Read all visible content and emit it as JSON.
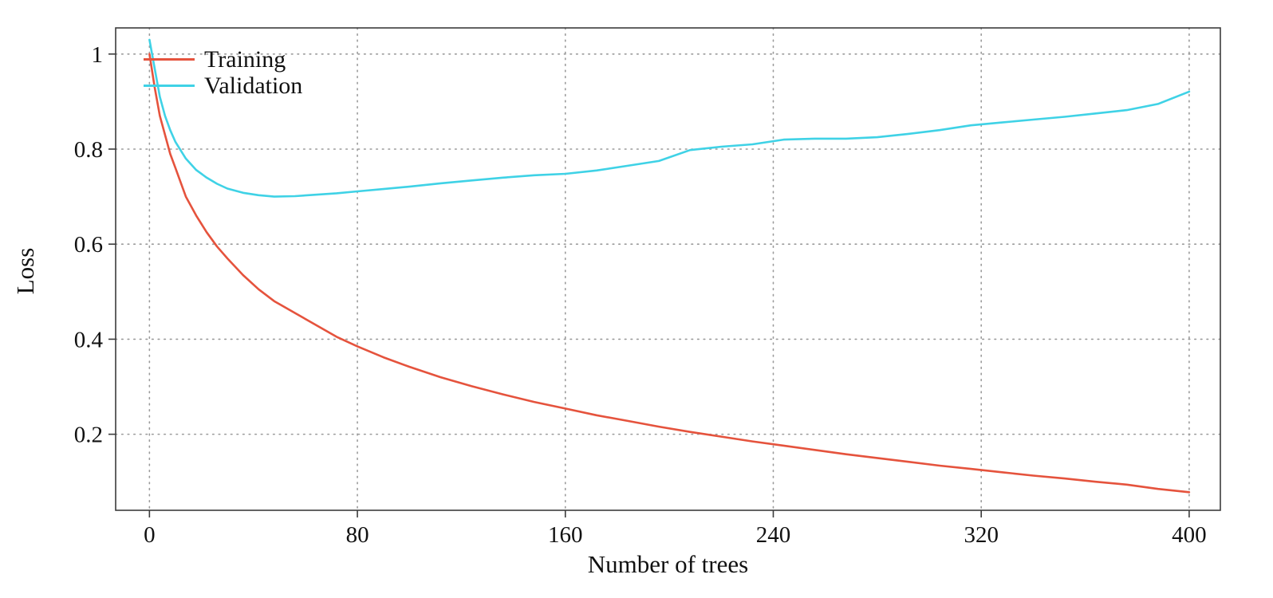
{
  "page": {
    "background": "#ffffff"
  },
  "chart_data": {
    "type": "line",
    "title": "",
    "xlabel": "Number of trees",
    "ylabel": "Loss",
    "xlim": [
      -13,
      412
    ],
    "ylim": [
      0.04,
      1.055
    ],
    "x_ticks": [
      0,
      80,
      160,
      240,
      320,
      400
    ],
    "x_tick_labels": [
      "0",
      "80",
      "160",
      "240",
      "320",
      "400"
    ],
    "y_ticks": [
      0.2,
      0.4,
      0.6,
      0.8,
      1.0
    ],
    "y_tick_labels": [
      "0.2",
      "0.4",
      "0.6",
      "0.8",
      "1"
    ],
    "grid": "dotted",
    "grid_color": "#9a9a9a",
    "frame_color": "#3c3c3c",
    "legend_position": "top-left-inside",
    "x": [
      0,
      2,
      4,
      6,
      8,
      10,
      14,
      18,
      22,
      26,
      30,
      36,
      42,
      48,
      56,
      64,
      72,
      80,
      90,
      100,
      112,
      124,
      136,
      148,
      160,
      172,
      184,
      196,
      208,
      220,
      232,
      244,
      256,
      268,
      280,
      292,
      304,
      316,
      328,
      340,
      352,
      364,
      376,
      388,
      400
    ],
    "series": [
      {
        "name": "Training",
        "color": "#e5533d",
        "values": [
          1.0,
          0.93,
          0.87,
          0.83,
          0.79,
          0.76,
          0.7,
          0.66,
          0.625,
          0.595,
          0.57,
          0.535,
          0.505,
          0.48,
          0.455,
          0.43,
          0.405,
          0.385,
          0.362,
          0.342,
          0.32,
          0.301,
          0.284,
          0.268,
          0.254,
          0.24,
          0.228,
          0.216,
          0.205,
          0.195,
          0.185,
          0.176,
          0.167,
          0.158,
          0.15,
          0.142,
          0.134,
          0.127,
          0.12,
          0.113,
          0.107,
          0.1,
          0.094,
          0.085,
          0.078
        ]
      },
      {
        "name": "Validation",
        "color": "#3fd2e6",
        "values": [
          1.03,
          0.97,
          0.91,
          0.87,
          0.84,
          0.815,
          0.78,
          0.756,
          0.74,
          0.727,
          0.717,
          0.708,
          0.703,
          0.7,
          0.701,
          0.704,
          0.707,
          0.711,
          0.716,
          0.721,
          0.728,
          0.734,
          0.74,
          0.745,
          0.748,
          0.755,
          0.765,
          0.775,
          0.798,
          0.805,
          0.81,
          0.82,
          0.822,
          0.822,
          0.825,
          0.832,
          0.84,
          0.85,
          0.856,
          0.862,
          0.868,
          0.875,
          0.882,
          0.895,
          0.921
        ]
      }
    ]
  }
}
